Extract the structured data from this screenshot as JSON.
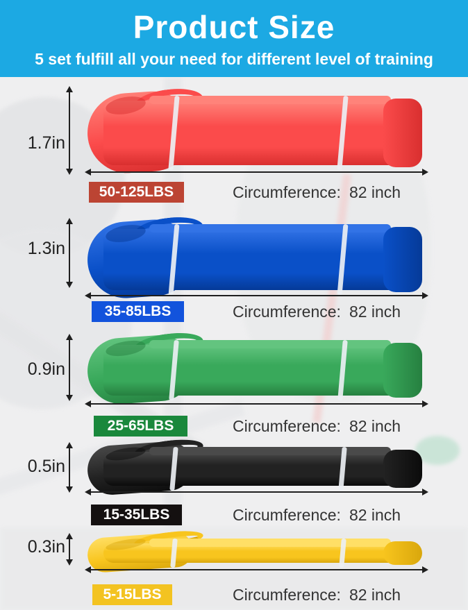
{
  "header": {
    "title": "Product Size",
    "subtitle": "5 set fulfill all your need for different level of training",
    "bg_color": "#1ca9e3",
    "text_color": "#ffffff"
  },
  "bands": [
    {
      "name": "red",
      "height": "1.7in",
      "weight_range": "50-125LBS",
      "circumference_label": "Circumference:",
      "circumference_value": "82 inch",
      "band_color": "#fb4b4b",
      "band_color_light": "#ff837a",
      "band_color_dark": "#d92f2f",
      "badge_color": "#bc4433"
    },
    {
      "name": "blue",
      "height": "1.3in",
      "weight_range": "35-85LBS",
      "circumference_label": "Circumference:",
      "circumference_value": "82 inch",
      "band_color": "#0a50c8",
      "band_color_light": "#3273e6",
      "band_color_dark": "#053a98",
      "badge_color": "#1253dc"
    },
    {
      "name": "green",
      "height": "0.9in",
      "weight_range": "25-65LBS",
      "circumference_label": "Circumference:",
      "circumference_value": "82 inch",
      "band_color": "#39a95b",
      "band_color_light": "#63c47f",
      "band_color_dark": "#268040",
      "badge_color": "#1a883c"
    },
    {
      "name": "black",
      "height": "0.5in",
      "weight_range": "15-35LBS",
      "circumference_label": "Circumference:",
      "circumference_value": "82 inch",
      "band_color": "#222222",
      "band_color_light": "#4a4a4a",
      "band_color_dark": "#0b0b0b",
      "badge_color": "#141010"
    },
    {
      "name": "yellow",
      "height": "0.3in",
      "weight_range": "5-15LBS",
      "circumference_label": "Circumference:",
      "circumference_value": "82 inch",
      "band_color": "#f8c51e",
      "band_color_light": "#ffdf66",
      "band_color_dark": "#d9a70c",
      "badge_color": "#f3c321"
    }
  ],
  "arrow_color": "#1f1f1f",
  "text_color": "#333333",
  "background_color": "#efeff0"
}
